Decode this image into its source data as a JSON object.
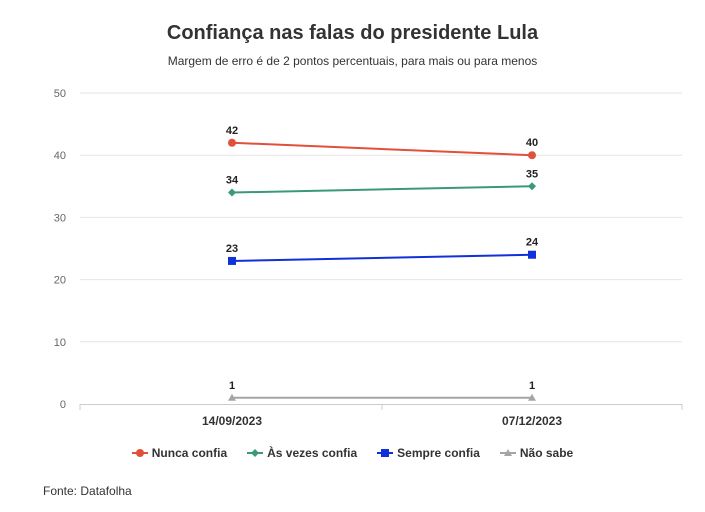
{
  "title": "Confiança nas falas do presidente Lula",
  "subtitle": "Margem de erro é de 2 pontos percentuais, para mais ou para menos",
  "source": "Fonte: Datafolha",
  "chart_data": {
    "type": "line",
    "title": "Confiança nas falas do presidente Lula",
    "subtitle": "Margem de erro é de 2 pontos percentuais, para mais ou para menos",
    "categories": [
      "14/09/2023",
      "07/12/2023"
    ],
    "ylim": [
      0,
      50
    ],
    "yticks": [
      0,
      10,
      20,
      30,
      40,
      50
    ],
    "grid": true,
    "legend_position": "bottom",
    "series": [
      {
        "name": "Nunca confia",
        "values": [
          42,
          40
        ],
        "color": "#e0503a",
        "marker": "circle"
      },
      {
        "name": "Às vezes confia",
        "values": [
          34,
          35
        ],
        "color": "#3b9a76",
        "marker": "diamond"
      },
      {
        "name": "Sempre confia",
        "values": [
          23,
          24
        ],
        "color": "#1030d8",
        "marker": "square"
      },
      {
        "name": "Não sabe",
        "values": [
          1,
          1
        ],
        "color": "#a5a5a5",
        "marker": "triangle"
      }
    ]
  }
}
